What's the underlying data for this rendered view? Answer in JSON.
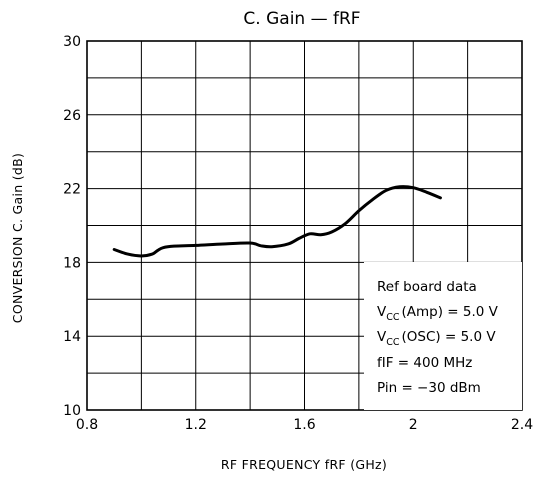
{
  "chart_data": {
    "type": "line",
    "title": "C. Gain — fRF",
    "xlabel": "RF FREQUENCY  fRF  (GHz)",
    "ylabel": "CONVERSION  C. Gain  (dB)",
    "xlim": [
      0.8,
      2.4
    ],
    "ylim": [
      10,
      30
    ],
    "x_ticks": [
      0.8,
      1.2,
      1.6,
      2.0,
      2.4
    ],
    "x_tick_labels": [
      "0.8",
      "1.2",
      "1.6",
      "2",
      "2.4"
    ],
    "y_ticks": [
      10,
      14,
      18,
      22,
      26,
      30
    ],
    "y_tick_labels": [
      "10",
      "14",
      "18",
      "22",
      "26",
      "30"
    ],
    "x_grid_step": 0.2,
    "y_grid_step": 2,
    "grid": true,
    "line_color": "#000000",
    "series": [
      {
        "x": [
          0.9,
          0.95,
          1.0,
          1.04,
          1.06,
          1.08,
          1.12,
          1.2,
          1.3,
          1.4,
          1.44,
          1.48,
          1.54,
          1.58,
          1.62,
          1.66,
          1.7,
          1.75,
          1.8,
          1.85,
          1.9,
          1.95,
          2.0,
          2.05,
          2.1
        ],
        "y": [
          18.7,
          18.45,
          18.35,
          18.45,
          18.65,
          18.8,
          18.88,
          18.92,
          19.0,
          19.05,
          18.9,
          18.85,
          19.0,
          19.3,
          19.55,
          19.5,
          19.65,
          20.1,
          20.8,
          21.4,
          21.9,
          22.1,
          22.05,
          21.8,
          21.5
        ]
      }
    ],
    "annotation_lines": [
      "Ref board data",
      "V_CC (Amp) = 5.0 V",
      "V_CC (OSC) = 5.0 V",
      "fIF = 400 MHz",
      "Pin = −30 dBm"
    ],
    "annotation_placement": "bottom-right"
  },
  "note": {
    "line1": "Ref board data",
    "vcc_v": "V",
    "vcc_sub": "CC",
    "line2_rest": "(Amp) = 5.0 V",
    "line3_rest": "(OSC) = 5.0 V",
    "line4": "fIF = 400 MHz",
    "line5": "Pin = −30 dBm"
  }
}
